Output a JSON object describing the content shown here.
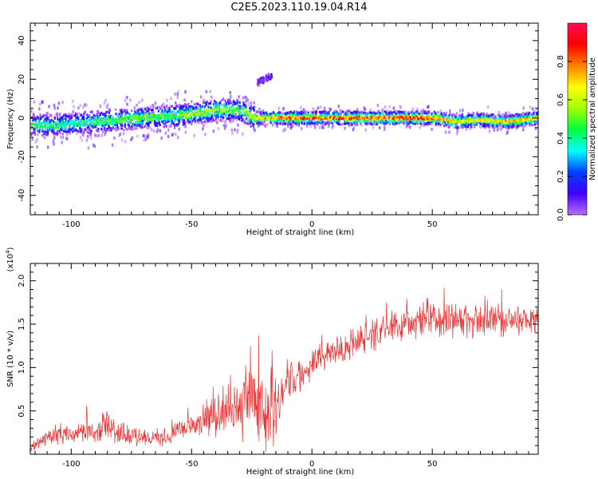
{
  "title": "C2E5.2023.110.19.04.R14",
  "chart_data": [
    {
      "type": "heatmap",
      "title": "C2E5.2023.110.19.04.R14",
      "xlabel": "Height of straight line (km)",
      "ylabel": "Frequency (Hz)",
      "xlim": [
        -117,
        94
      ],
      "ylim": [
        -50,
        49
      ],
      "x_ticks": [
        -100,
        -50,
        0,
        50
      ],
      "y_ticks": [
        -40,
        -20,
        0,
        20,
        40
      ],
      "colorbar": {
        "label": "Normalized spectral amplitude",
        "range": [
          0.0,
          1.0
        ],
        "ticks": [
          "0.0",
          "0.2",
          "0.4",
          "0.6",
          "0.8"
        ],
        "colors": [
          "#ffffff",
          "#b86cff",
          "#4000ff",
          "#0040ff",
          "#00ffff",
          "#00ff40",
          "#a0ff00",
          "#ffff00",
          "#ff8000",
          "#ff0000",
          "#ff1050"
        ]
      },
      "ridge": {
        "x": [
          -117,
          -110,
          -100,
          -90,
          -80,
          -70,
          -60,
          -50,
          -40,
          -30,
          -24,
          -20,
          -10,
          0,
          10,
          20,
          30,
          40,
          50,
          60,
          70,
          80,
          94
        ],
        "freq": [
          -4,
          -4,
          -3,
          -2,
          -1,
          0,
          1,
          2,
          4,
          4,
          0,
          0,
          0,
          0,
          0,
          0,
          0,
          0,
          0,
          -2,
          -1,
          -2,
          0
        ],
        "amplitude": [
          0.5,
          0.5,
          0.45,
          0.5,
          0.55,
          0.55,
          0.55,
          0.6,
          0.6,
          0.55,
          0.7,
          0.75,
          0.8,
          0.85,
          0.85,
          0.85,
          0.85,
          0.9,
          0.85,
          0.7,
          0.7,
          0.75,
          0.75
        ]
      },
      "secondary_trace": {
        "x": [
          -23,
          -20,
          -17
        ],
        "freq": [
          18,
          20,
          22
        ]
      }
    },
    {
      "type": "line",
      "xlabel": "Height of straight line (km)",
      "ylabel": "SNR (10 * v/v)",
      "y_multiplier": "(x10^4)",
      "xlim": [
        -117,
        94
      ],
      "ylim": [
        0.0,
        2.2
      ],
      "x_ticks": [
        -100,
        -50,
        0,
        50
      ],
      "y_ticks": [
        0.5,
        1.0,
        1.5,
        2.0
      ],
      "color": "#ee3333",
      "series": [
        {
          "x": [
            -117,
            -110,
            -100,
            -90,
            -85,
            -80,
            -70,
            -60,
            -50,
            -40,
            -30,
            -25,
            -20,
            -15,
            -10,
            -5,
            0,
            10,
            20,
            30,
            40,
            50,
            60,
            70,
            80,
            94
          ],
          "values": [
            0.05,
            0.2,
            0.25,
            0.25,
            0.3,
            0.25,
            0.18,
            0.2,
            0.35,
            0.45,
            0.55,
            0.7,
            0.55,
            0.5,
            0.85,
            0.9,
            1.05,
            1.2,
            1.3,
            1.45,
            1.5,
            1.6,
            1.55,
            1.55,
            1.55,
            1.55
          ],
          "noise": [
            0.05,
            0.1,
            0.1,
            0.12,
            0.2,
            0.12,
            0.08,
            0.1,
            0.15,
            0.2,
            0.35,
            0.45,
            0.45,
            0.35,
            0.2,
            0.15,
            0.15,
            0.15,
            0.15,
            0.15,
            0.15,
            0.2,
            0.2,
            0.15,
            0.15,
            0.15
          ]
        }
      ]
    }
  ]
}
